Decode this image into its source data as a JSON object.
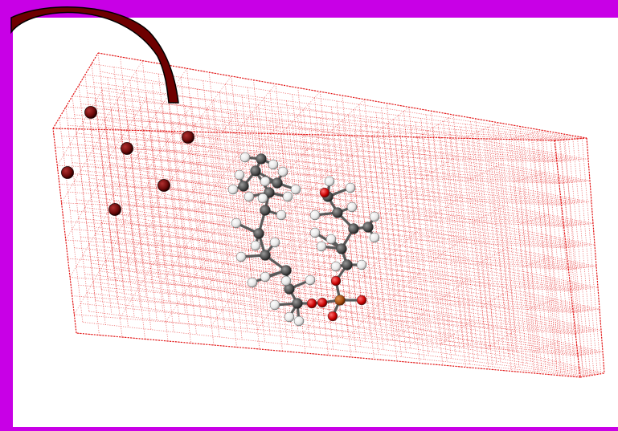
{
  "slide": {
    "background_color": "#ffffff",
    "band_color": "#c800e6"
  },
  "figure": {
    "description_icon": "molecular-simulation-box",
    "grid_color": "#e00000",
    "arrow_color": "#6e0000",
    "ion_color": "#6a0a0a",
    "atom_colors": {
      "carbon": "#555555",
      "hydrogen": "#f2f2f2",
      "oxygen": "#cc0000",
      "phosphorus": "#b05a1a"
    }
  }
}
